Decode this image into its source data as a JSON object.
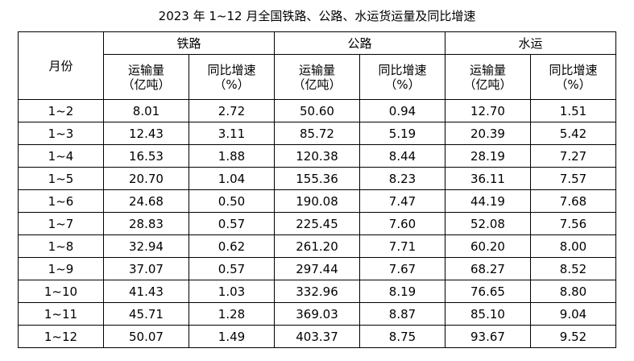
{
  "title": "2023 年 1~12 月全国铁路、公路、水运货运量及同比增速",
  "table": {
    "month_header": "月份",
    "groups": [
      "铁路",
      "公路",
      "水运"
    ],
    "sub": {
      "volume_line1": "运输量",
      "volume_line2": "（亿吨）",
      "growth_line1": "同比增速",
      "growth_line2": "（%）"
    },
    "rows": [
      [
        "1~2",
        "8.01",
        "2.72",
        "50.60",
        "0.94",
        "12.70",
        "1.51"
      ],
      [
        "1~3",
        "12.43",
        "3.11",
        "85.72",
        "5.19",
        "20.39",
        "5.42"
      ],
      [
        "1~4",
        "16.53",
        "1.88",
        "120.38",
        "8.44",
        "28.19",
        "7.27"
      ],
      [
        "1~5",
        "20.70",
        "1.04",
        "155.36",
        "8.23",
        "36.11",
        "7.57"
      ],
      [
        "1~6",
        "24.68",
        "0.50",
        "190.08",
        "7.47",
        "44.19",
        "7.68"
      ],
      [
        "1~7",
        "28.83",
        "0.57",
        "225.45",
        "7.60",
        "52.08",
        "7.56"
      ],
      [
        "1~8",
        "32.94",
        "0.62",
        "261.20",
        "7.71",
        "60.20",
        "8.00"
      ],
      [
        "1~9",
        "37.07",
        "0.57",
        "297.44",
        "7.67",
        "68.27",
        "8.52"
      ],
      [
        "1~10",
        "41.43",
        "1.03",
        "332.96",
        "8.19",
        "76.65",
        "8.80"
      ],
      [
        "1~11",
        "45.71",
        "1.28",
        "369.03",
        "8.87",
        "85.10",
        "9.04"
      ],
      [
        "1~12",
        "50.07",
        "1.49",
        "403.37",
        "8.75",
        "93.67",
        "9.52"
      ]
    ]
  }
}
